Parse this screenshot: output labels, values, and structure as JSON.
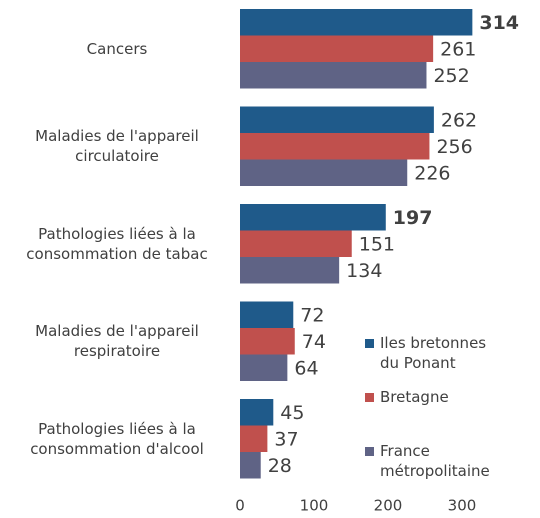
{
  "chart_data": {
    "type": "barh",
    "categories": [
      "Cancers",
      "Maladies de l'appareil\ncirculatoire",
      "Pathologies liées à la\nconsommation de tabac",
      "Maladies de l'appareil\nrespiratoire",
      "Pathologies liées à la\nconsommation d'alcool"
    ],
    "series": [
      {
        "name": "Iles bretonnes\ndu Ponant",
        "color": "#1f5a8a",
        "values": [
          314,
          262,
          197,
          72,
          45
        ],
        "bold": [
          true,
          false,
          true,
          false,
          false
        ]
      },
      {
        "name": "Bretagne",
        "color": "#c0504d",
        "values": [
          261,
          256,
          151,
          74,
          37
        ]
      },
      {
        "name": "France\nmétropolitaine",
        "color": "#5f6385",
        "values": [
          252,
          226,
          134,
          64,
          28
        ]
      }
    ],
    "xlim": [
      0,
      300
    ],
    "xticks": [
      0,
      100,
      200,
      300
    ],
    "grid": false,
    "legend": "lower right"
  }
}
